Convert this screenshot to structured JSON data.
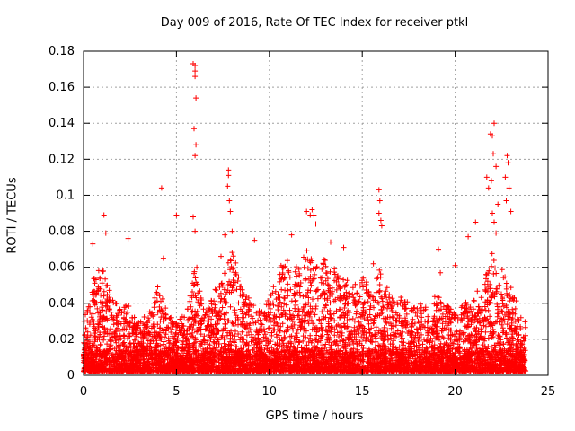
{
  "chart_data": {
    "type": "scatter",
    "title": "Day 009 of 2016, Rate Of TEC Index for receiver ptkl",
    "xlabel": "GPS time / hours",
    "ylabel": "ROTI / TECUs",
    "xlim": [
      0,
      25
    ],
    "ylim": [
      0,
      0.18
    ],
    "xticks": [
      "0",
      "5",
      "10",
      "15",
      "20",
      "25"
    ],
    "yticks": [
      "0",
      "0.02",
      "0.04",
      "0.06",
      "0.08",
      "0.1",
      "0.12",
      "0.14",
      "0.16",
      "0.18"
    ],
    "grid": true,
    "marker": "+",
    "series_color": "#ff0000",
    "envelope": {
      "description_hours": [
        0.0,
        0.5,
        1.0,
        1.5,
        2.0,
        2.5,
        3.0,
        3.5,
        4.0,
        4.5,
        5.0,
        5.5,
        6.0,
        6.5,
        7.0,
        7.5,
        8.0,
        8.5,
        9.0,
        9.5,
        10.0,
        10.5,
        11.0,
        11.5,
        12.0,
        12.5,
        13.0,
        13.5,
        14.0,
        14.5,
        15.0,
        15.5,
        16.0,
        16.5,
        17.0,
        17.5,
        18.0,
        18.5,
        19.0,
        19.5,
        20.0,
        20.5,
        21.0,
        21.5,
        22.0,
        22.5,
        23.0,
        23.5,
        23.8
      ],
      "typical_max": [
        0.03,
        0.055,
        0.06,
        0.045,
        0.04,
        0.04,
        0.03,
        0.035,
        0.05,
        0.035,
        0.03,
        0.035,
        0.06,
        0.035,
        0.045,
        0.06,
        0.07,
        0.05,
        0.045,
        0.035,
        0.045,
        0.06,
        0.065,
        0.06,
        0.07,
        0.06,
        0.065,
        0.06,
        0.055,
        0.05,
        0.055,
        0.05,
        0.06,
        0.045,
        0.045,
        0.04,
        0.04,
        0.04,
        0.045,
        0.04,
        0.035,
        0.04,
        0.045,
        0.05,
        0.07,
        0.06,
        0.05,
        0.035,
        0.03
      ]
    },
    "spikes": [
      {
        "x": 0.5,
        "y": 0.073
      },
      {
        "x": 1.1,
        "y": 0.089
      },
      {
        "x": 1.2,
        "y": 0.079
      },
      {
        "x": 2.4,
        "y": 0.076
      },
      {
        "x": 4.2,
        "y": 0.104
      },
      {
        "x": 4.3,
        "y": 0.065
      },
      {
        "x": 5.0,
        "y": 0.089
      },
      {
        "x": 5.9,
        "y": 0.173
      },
      {
        "x": 6.0,
        "y": 0.172
      },
      {
        "x": 6.0,
        "y": 0.169
      },
      {
        "x": 6.0,
        "y": 0.166
      },
      {
        "x": 6.05,
        "y": 0.154
      },
      {
        "x": 5.95,
        "y": 0.137
      },
      {
        "x": 6.05,
        "y": 0.128
      },
      {
        "x": 6.0,
        "y": 0.122
      },
      {
        "x": 5.9,
        "y": 0.088
      },
      {
        "x": 6.0,
        "y": 0.08
      },
      {
        "x": 6.1,
        "y": 0.06
      },
      {
        "x": 7.4,
        "y": 0.066
      },
      {
        "x": 7.6,
        "y": 0.078
      },
      {
        "x": 7.8,
        "y": 0.114
      },
      {
        "x": 7.8,
        "y": 0.111
      },
      {
        "x": 7.75,
        "y": 0.105
      },
      {
        "x": 7.85,
        "y": 0.097
      },
      {
        "x": 7.9,
        "y": 0.091
      },
      {
        "x": 8.0,
        "y": 0.08
      },
      {
        "x": 9.2,
        "y": 0.075
      },
      {
        "x": 11.2,
        "y": 0.078
      },
      {
        "x": 12.0,
        "y": 0.091
      },
      {
        "x": 12.2,
        "y": 0.089
      },
      {
        "x": 12.3,
        "y": 0.092
      },
      {
        "x": 12.4,
        "y": 0.089
      },
      {
        "x": 12.5,
        "y": 0.084
      },
      {
        "x": 13.3,
        "y": 0.074
      },
      {
        "x": 14.0,
        "y": 0.071
      },
      {
        "x": 15.6,
        "y": 0.062
      },
      {
        "x": 15.9,
        "y": 0.103
      },
      {
        "x": 15.95,
        "y": 0.097
      },
      {
        "x": 15.9,
        "y": 0.09
      },
      {
        "x": 16.0,
        "y": 0.086
      },
      {
        "x": 16.05,
        "y": 0.083
      },
      {
        "x": 19.1,
        "y": 0.07
      },
      {
        "x": 19.2,
        "y": 0.057
      },
      {
        "x": 20.0,
        "y": 0.061
      },
      {
        "x": 20.7,
        "y": 0.077
      },
      {
        "x": 21.1,
        "y": 0.085
      },
      {
        "x": 21.7,
        "y": 0.11
      },
      {
        "x": 21.8,
        "y": 0.104
      },
      {
        "x": 21.9,
        "y": 0.134
      },
      {
        "x": 22.0,
        "y": 0.133
      },
      {
        "x": 22.1,
        "y": 0.14
      },
      {
        "x": 22.05,
        "y": 0.123
      },
      {
        "x": 22.2,
        "y": 0.116
      },
      {
        "x": 21.95,
        "y": 0.108
      },
      {
        "x": 22.3,
        "y": 0.095
      },
      {
        "x": 22.0,
        "y": 0.09
      },
      {
        "x": 22.1,
        "y": 0.085
      },
      {
        "x": 22.2,
        "y": 0.079
      },
      {
        "x": 22.8,
        "y": 0.122
      },
      {
        "x": 22.85,
        "y": 0.118
      },
      {
        "x": 22.7,
        "y": 0.11
      },
      {
        "x": 22.9,
        "y": 0.104
      },
      {
        "x": 22.75,
        "y": 0.097
      },
      {
        "x": 23.0,
        "y": 0.091
      }
    ],
    "baseline_min": 0.002,
    "x_data_range": [
      0,
      23.8
    ]
  }
}
